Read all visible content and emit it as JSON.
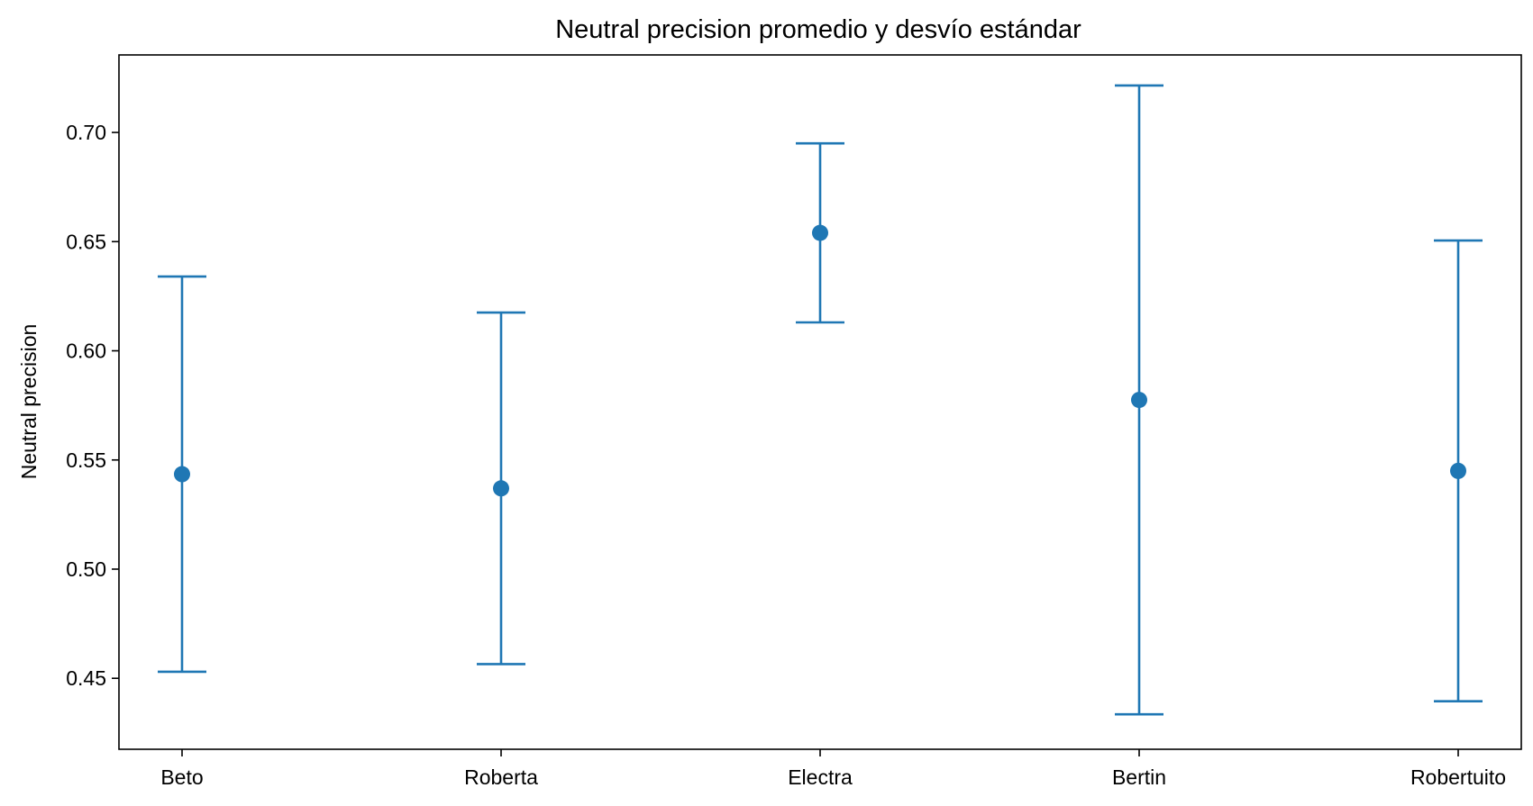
{
  "chart_data": {
    "type": "errorbar",
    "title": "Neutral precision promedio y desvío estándar",
    "xlabel": "",
    "ylabel": "Neutral precision",
    "categories": [
      "Beto",
      "Roberta",
      "Electra",
      "Bertin",
      "Robertuito"
    ],
    "series": [
      {
        "values": [
          0.5435,
          0.537,
          0.654,
          0.5775,
          0.545
        ],
        "std": [
          0.0905,
          0.0805,
          0.041,
          0.144,
          0.1055
        ]
      }
    ],
    "ylim": [
      0.4175,
      0.7355
    ],
    "yticks": [
      0.45,
      0.5,
      0.55,
      0.6,
      0.65,
      0.7
    ],
    "ytick_labels": [
      "0.45",
      "0.50",
      "0.55",
      "0.60",
      "0.65",
      "0.70"
    ],
    "grid": false,
    "color": "#1f77b4"
  }
}
